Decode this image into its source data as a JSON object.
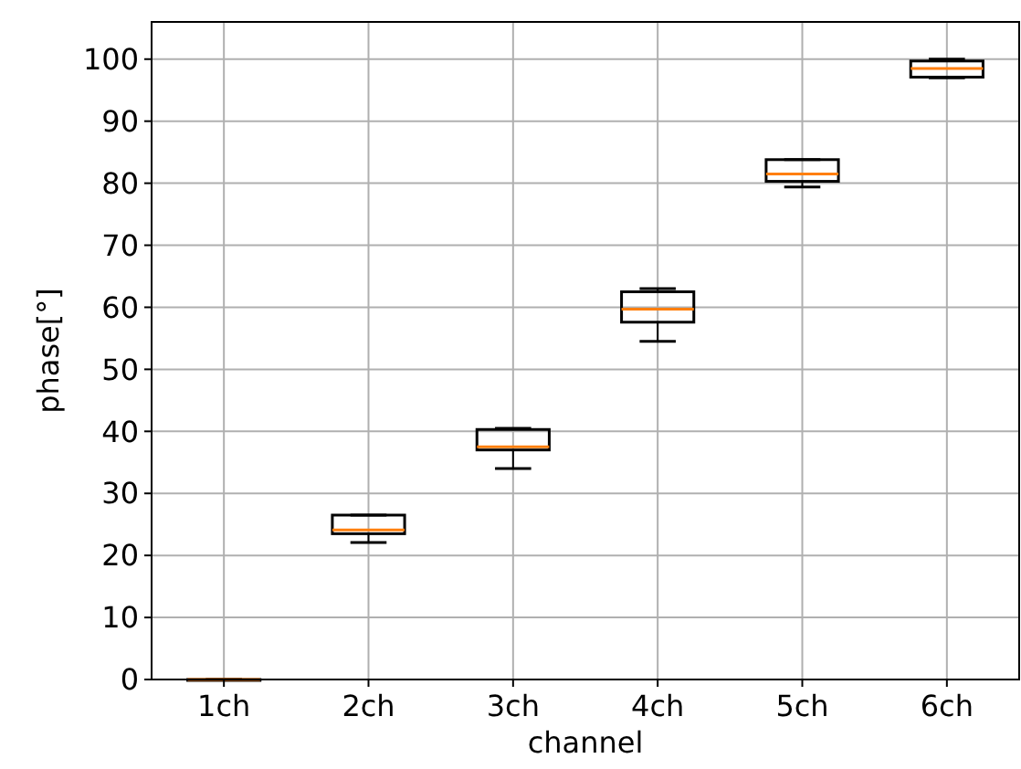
{
  "chart_data": {
    "type": "box",
    "xlabel": "channel",
    "ylabel": "phase[°]",
    "categories": [
      "1ch",
      "2ch",
      "3ch",
      "4ch",
      "5ch",
      "6ch"
    ],
    "boxes": [
      {
        "low": 0,
        "q1": 0,
        "median": 0,
        "q3": 0,
        "high": 0
      },
      {
        "low": 22.1,
        "q1": 23.5,
        "median": 24.1,
        "q3": 26.5,
        "high": 26.5
      },
      {
        "low": 34,
        "q1": 37,
        "median": 37.5,
        "q3": 40.3,
        "high": 40.5
      },
      {
        "low": 54.5,
        "q1": 57.6,
        "median": 59.7,
        "q3": 62.5,
        "high": 63
      },
      {
        "low": 79.4,
        "q1": 80.3,
        "median": 81.5,
        "q3": 83.8,
        "high": 83.8
      },
      {
        "low": 97,
        "q1": 97.1,
        "median": 98.5,
        "q3": 99.7,
        "high": 100
      }
    ],
    "color": "#000000",
    "ylim": [
      0,
      106
    ],
    "yticks": [
      0,
      10,
      20,
      30,
      40,
      50,
      60,
      70,
      80,
      90,
      100
    ],
    "grid": true
  }
}
